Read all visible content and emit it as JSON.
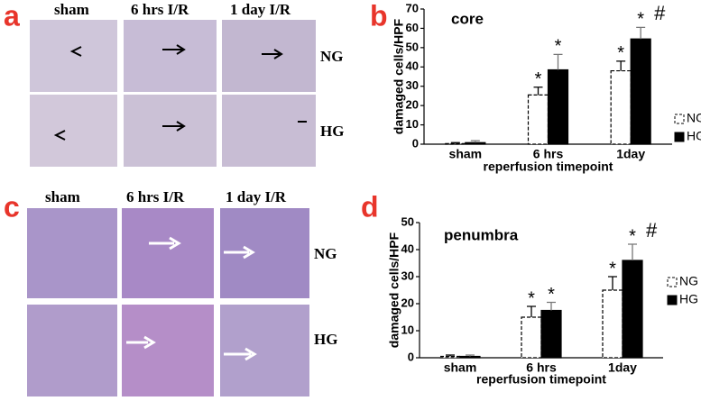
{
  "figure": {
    "panels": [
      "a",
      "b",
      "c",
      "d"
    ],
    "columns_a": [
      "sham",
      "6 hrs I/R",
      "1 day I/R"
    ],
    "rows_a": [
      "NG",
      "HG"
    ],
    "columns_c": [
      "sham",
      "6 hrs I/R",
      "1 day I/R"
    ],
    "rows_c": [
      "NG",
      "HG"
    ]
  },
  "chart_data": [
    {
      "type": "bar",
      "title": "core",
      "y_label": "damaged cells/HPF",
      "x_label": "reperfusion timepoint",
      "categories": [
        "sham",
        "6 hrs",
        "1day"
      ],
      "series": [
        {
          "name": "NG",
          "color": "#ffffff",
          "values": [
            0.3,
            25.5,
            38
          ],
          "errors": [
            0.5,
            4,
            5
          ],
          "annotations": [
            null,
            "*",
            "*"
          ]
        },
        {
          "name": "HG",
          "color": "#000000",
          "values": [
            0.8,
            38.5,
            54.5
          ],
          "errors": [
            1,
            8,
            6
          ],
          "annotations": [
            null,
            "*",
            "*"
          ]
        }
      ],
      "annotation": "#",
      "ylim": [
        0,
        70
      ],
      "yticks": [
        0,
        10,
        20,
        30,
        40,
        50,
        60,
        70
      ],
      "grid": false
    },
    {
      "type": "bar",
      "title": "penumbra",
      "y_label": "damaged cells/HPF",
      "x_label": "reperfusion timepoint",
      "categories": [
        "sham",
        "6 hrs",
        "1day"
      ],
      "series": [
        {
          "name": "NG",
          "color": "#ffffff",
          "values": [
            0.5,
            15,
            25
          ],
          "errors": [
            0.5,
            4,
            5
          ],
          "annotations": [
            null,
            "*",
            "*"
          ]
        },
        {
          "name": "HG",
          "color": "#000000",
          "values": [
            0.5,
            17.5,
            36
          ],
          "errors": [
            0.5,
            3,
            6
          ],
          "annotations": [
            null,
            "*",
            "*"
          ]
        }
      ],
      "annotation": "#",
      "ylim": [
        0,
        50
      ],
      "yticks": [
        0,
        10,
        20,
        30,
        40,
        50
      ],
      "grid": false
    }
  ]
}
